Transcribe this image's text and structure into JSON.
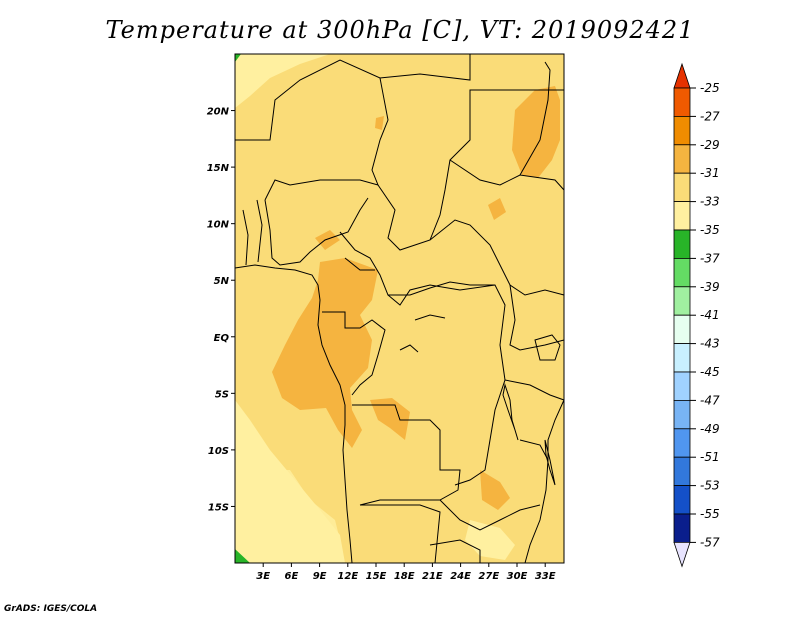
{
  "title": "Temperature at 300hPa [C], VT: 2019092421",
  "credit": "GrADS: IGES/COLA",
  "map": {
    "lon_range": [
      0,
      35
    ],
    "lat_range": [
      -20,
      25
    ],
    "lon_ticks": [
      "3E",
      "6E",
      "9E",
      "12E",
      "15E",
      "18E",
      "21E",
      "24E",
      "27E",
      "30E",
      "33E"
    ],
    "lat_ticks": [
      "20N",
      "15N",
      "10N",
      "5N",
      "EQ",
      "5S",
      "10S",
      "15S"
    ]
  },
  "colorbar": {
    "labels": [
      "-25",
      "-27",
      "-29",
      "-31",
      "-33",
      "-35",
      "-37",
      "-39",
      "-41",
      "-43",
      "-45",
      "-47",
      "-49",
      "-51",
      "-53",
      "-55",
      "-57"
    ],
    "colors": [
      "#f05a00",
      "#f08c00",
      "#f5b440",
      "#fadc78",
      "#fff0a0",
      "#28b428",
      "#64dc64",
      "#a0f0a0",
      "#e6fff0",
      "#c8f0ff",
      "#a0d2ff",
      "#78b4f5",
      "#5096f0",
      "#3278dc",
      "#1450c8",
      "#0a1e8c"
    ],
    "top_arrow_color": "#e63200",
    "bottom_arrow_color": "#e8e4ff"
  },
  "fields": {
    "base": "#fadc78",
    "warm": "#f5b440",
    "cool": "#fff0a0",
    "cold": "#28b428"
  }
}
